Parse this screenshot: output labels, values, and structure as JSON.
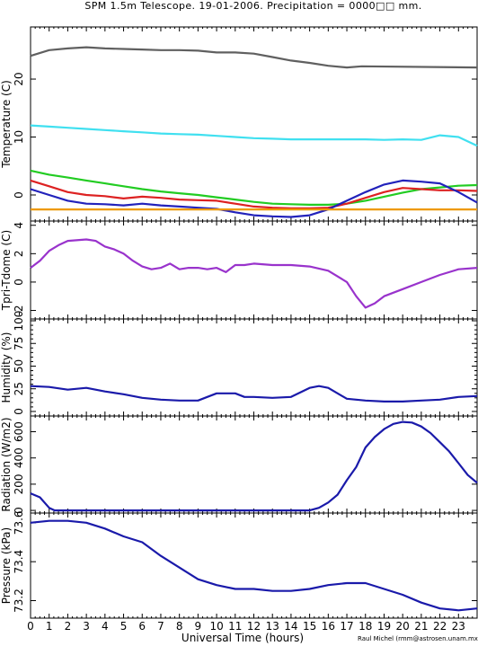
{
  "header": {
    "title": "SPM 1.5m Telescope. 19-01-2006. Precipitation = 0000□□ mm."
  },
  "footer": {
    "xlabel": "Universal Time (hours)",
    "credit": "Raul Michel (rmm@astrosen.unam.mx)"
  },
  "chart_data": [
    {
      "type": "line",
      "ylabel": "Temperature (C)",
      "xlim": [
        0,
        24
      ],
      "ylim": [
        -4.5,
        29
      ],
      "yticks": [
        0,
        10,
        20
      ],
      "x_ticks": [
        0,
        1,
        2,
        3,
        4,
        5,
        6,
        7,
        8,
        9,
        10,
        11,
        12,
        13,
        14,
        15,
        16,
        17,
        18,
        19,
        20,
        21,
        22,
        23
      ],
      "series": [
        {
          "color": "#606060",
          "points": [
            [
              0,
              24
            ],
            [
              1,
              25
            ],
            [
              2,
              25.3
            ],
            [
              3,
              25.5
            ],
            [
              4,
              25.3
            ],
            [
              5,
              25.2
            ],
            [
              6,
              25.1
            ],
            [
              7,
              25
            ],
            [
              8,
              25
            ],
            [
              9,
              24.9
            ],
            [
              10,
              24.6
            ],
            [
              11,
              24.6
            ],
            [
              12,
              24.4
            ],
            [
              13,
              23.8
            ],
            [
              14,
              23.2
            ],
            [
              15,
              22.8
            ],
            [
              16,
              22.3
            ],
            [
              17,
              22
            ],
            [
              17.8,
              22.2
            ],
            [
              24,
              22
            ]
          ]
        },
        {
          "color": "#40e0f0",
          "points": [
            [
              0,
              12
            ],
            [
              1,
              11.8
            ],
            [
              2,
              11.6
            ],
            [
              3,
              11.4
            ],
            [
              4,
              11.2
            ],
            [
              5,
              11
            ],
            [
              6,
              10.8
            ],
            [
              7,
              10.6
            ],
            [
              8,
              10.5
            ],
            [
              9,
              10.4
            ],
            [
              10,
              10.2
            ],
            [
              11,
              10
            ],
            [
              12,
              9.8
            ],
            [
              13,
              9.7
            ],
            [
              14,
              9.6
            ],
            [
              15,
              9.6
            ],
            [
              16,
              9.6
            ],
            [
              17,
              9.6
            ],
            [
              18,
              9.6
            ],
            [
              19,
              9.5
            ],
            [
              20,
              9.6
            ],
            [
              21,
              9.5
            ],
            [
              22,
              10.3
            ],
            [
              23,
              10
            ],
            [
              24,
              8.5
            ]
          ]
        },
        {
          "color": "#22cc22",
          "points": [
            [
              0,
              4.2
            ],
            [
              1,
              3.5
            ],
            [
              2,
              3
            ],
            [
              3,
              2.5
            ],
            [
              4,
              2
            ],
            [
              5,
              1.5
            ],
            [
              6,
              1
            ],
            [
              7,
              0.6
            ],
            [
              8,
              0.3
            ],
            [
              9,
              0
            ],
            [
              10,
              -0.4
            ],
            [
              11,
              -0.8
            ],
            [
              12,
              -1.2
            ],
            [
              13,
              -1.5
            ],
            [
              14,
              -1.6
            ],
            [
              15,
              -1.7
            ],
            [
              16,
              -1.7
            ],
            [
              17,
              -1.5
            ],
            [
              18,
              -1
            ],
            [
              19,
              -0.3
            ],
            [
              20,
              0.4
            ],
            [
              21,
              1
            ],
            [
              22,
              1.3
            ],
            [
              23,
              1.6
            ],
            [
              24,
              1.7
            ]
          ]
        },
        {
          "color": "#dd2222",
          "points": [
            [
              0,
              2.5
            ],
            [
              1,
              1.5
            ],
            [
              2,
              0.5
            ],
            [
              3,
              0
            ],
            [
              4,
              -0.2
            ],
            [
              5,
              -0.6
            ],
            [
              6,
              -0.3
            ],
            [
              7,
              -0.5
            ],
            [
              8,
              -0.8
            ],
            [
              9,
              -0.9
            ],
            [
              10,
              -1
            ],
            [
              11,
              -1.5
            ],
            [
              12,
              -2
            ],
            [
              13,
              -2.2
            ],
            [
              14,
              -2.3
            ],
            [
              15,
              -2.3
            ],
            [
              16,
              -2.2
            ],
            [
              17,
              -1.5
            ],
            [
              18,
              -0.5
            ],
            [
              19,
              0.5
            ],
            [
              20,
              1.2
            ],
            [
              21,
              1
            ],
            [
              22,
              0.8
            ],
            [
              23,
              0.8
            ],
            [
              24,
              0.7
            ]
          ]
        },
        {
          "color": "#2222bb",
          "points": [
            [
              0,
              1
            ],
            [
              1,
              0
            ],
            [
              2,
              -1
            ],
            [
              3,
              -1.5
            ],
            [
              4,
              -1.6
            ],
            [
              5,
              -1.8
            ],
            [
              6,
              -1.5
            ],
            [
              7,
              -1.8
            ],
            [
              8,
              -2
            ],
            [
              9,
              -2.2
            ],
            [
              10,
              -2.4
            ],
            [
              11,
              -3
            ],
            [
              12,
              -3.5
            ],
            [
              13,
              -3.7
            ],
            [
              14,
              -3.8
            ],
            [
              15,
              -3.5
            ],
            [
              16,
              -2.5
            ],
            [
              17,
              -1
            ],
            [
              18,
              0.5
            ],
            [
              19,
              1.8
            ],
            [
              20,
              2.5
            ],
            [
              21,
              2.3
            ],
            [
              22,
              2
            ],
            [
              23,
              0.5
            ],
            [
              24,
              -1.3
            ]
          ]
        },
        {
          "color": "#ee9900",
          "points": [
            [
              0,
              -2.5
            ],
            [
              24,
              -2.5
            ]
          ]
        }
      ]
    },
    {
      "type": "line",
      "ylabel": "Tpri-Tdome (C)",
      "xlim": [
        0,
        24
      ],
      "ylim": [
        -2.6,
        4.3
      ],
      "yticks": [
        -2,
        0,
        2,
        4
      ],
      "x_ticks": [
        0,
        1,
        2,
        3,
        4,
        5,
        6,
        7,
        8,
        9,
        10,
        11,
        12,
        13,
        14,
        15,
        16,
        17,
        18,
        19,
        20,
        21,
        22,
        23
      ],
      "series": [
        {
          "color": "#9933cc",
          "points": [
            [
              0,
              1
            ],
            [
              0.5,
              1.5
            ],
            [
              1,
              2.2
            ],
            [
              1.5,
              2.6
            ],
            [
              2,
              2.9
            ],
            [
              3,
              3
            ],
            [
              3.5,
              2.9
            ],
            [
              4,
              2.5
            ],
            [
              4.5,
              2.3
            ],
            [
              5,
              2
            ],
            [
              5.5,
              1.5
            ],
            [
              6,
              1.1
            ],
            [
              6.5,
              0.9
            ],
            [
              7,
              1
            ],
            [
              7.5,
              1.3
            ],
            [
              8,
              0.9
            ],
            [
              8.5,
              1
            ],
            [
              9,
              1
            ],
            [
              9.5,
              0.9
            ],
            [
              10,
              1
            ],
            [
              10.5,
              0.7
            ],
            [
              11,
              1.2
            ],
            [
              11.5,
              1.2
            ],
            [
              12,
              1.3
            ],
            [
              13,
              1.2
            ],
            [
              14,
              1.2
            ],
            [
              15,
              1.1
            ],
            [
              16,
              0.8
            ],
            [
              17,
              0
            ],
            [
              17.5,
              -1
            ],
            [
              18,
              -1.8
            ],
            [
              18.5,
              -1.5
            ],
            [
              19,
              -1
            ],
            [
              20,
              -0.5
            ],
            [
              21,
              0
            ],
            [
              22,
              0.5
            ],
            [
              23,
              0.9
            ],
            [
              24,
              1
            ]
          ]
        }
      ]
    },
    {
      "type": "line",
      "ylabel": "Humidity (%)",
      "xlim": [
        0,
        24
      ],
      "ylim": [
        -5,
        102
      ],
      "yticks": [
        0,
        25,
        50,
        75,
        100
      ],
      "minor_yticks": [
        5,
        10,
        15,
        20,
        30,
        35,
        40,
        45,
        55,
        60,
        65,
        70,
        80,
        85,
        90,
        95
      ],
      "x_ticks": [
        0,
        1,
        2,
        3,
        4,
        5,
        6,
        7,
        8,
        9,
        10,
        11,
        12,
        13,
        14,
        15,
        16,
        17,
        18,
        19,
        20,
        21,
        22,
        23
      ],
      "series": [
        {
          "color": "#1a1aaa",
          "points": [
            [
              0,
              28
            ],
            [
              1,
              27
            ],
            [
              2,
              24
            ],
            [
              3,
              26
            ],
            [
              4,
              22
            ],
            [
              5,
              19
            ],
            [
              6,
              15
            ],
            [
              7,
              13
            ],
            [
              8,
              12
            ],
            [
              9,
              12
            ],
            [
              9.5,
              16
            ],
            [
              10,
              20
            ],
            [
              11,
              20
            ],
            [
              11.5,
              16
            ],
            [
              12,
              16
            ],
            [
              13,
              15
            ],
            [
              14,
              16
            ],
            [
              15,
              26
            ],
            [
              15.5,
              28
            ],
            [
              16,
              26
            ],
            [
              16.5,
              20
            ],
            [
              17,
              14
            ],
            [
              18,
              12
            ],
            [
              19,
              11
            ],
            [
              20,
              11
            ],
            [
              21,
              12
            ],
            [
              22,
              13
            ],
            [
              23,
              16
            ],
            [
              24,
              17
            ]
          ]
        }
      ]
    },
    {
      "type": "line",
      "ylabel": "Radiation (W/m2)",
      "xlim": [
        0,
        24
      ],
      "ylim": [
        -20,
        720
      ],
      "yticks": [
        0,
        200,
        400,
        600
      ],
      "x_ticks": [
        0,
        1,
        2,
        3,
        4,
        5,
        6,
        7,
        8,
        9,
        10,
        11,
        12,
        13,
        14,
        15,
        16,
        17,
        18,
        19,
        20,
        21,
        22,
        23
      ],
      "series": [
        {
          "color": "#1a1aaa",
          "points": [
            [
              0,
              130
            ],
            [
              0.5,
              100
            ],
            [
              1,
              20
            ],
            [
              1.3,
              0
            ],
            [
              15,
              0
            ],
            [
              15.5,
              20
            ],
            [
              16,
              60
            ],
            [
              16.5,
              120
            ],
            [
              17,
              230
            ],
            [
              17.5,
              330
            ],
            [
              18,
              480
            ],
            [
              18.5,
              560
            ],
            [
              19,
              620
            ],
            [
              19.5,
              660
            ],
            [
              20,
              675
            ],
            [
              20.5,
              670
            ],
            [
              21,
              640
            ],
            [
              21.5,
              590
            ],
            [
              22,
              520
            ],
            [
              22.5,
              450
            ],
            [
              23,
              360
            ],
            [
              23.5,
              270
            ],
            [
              24,
              210
            ]
          ]
        }
      ]
    },
    {
      "type": "line",
      "ylabel": "Pressure (kPa)",
      "xlim": [
        0,
        24
      ],
      "ylim": [
        73.11,
        73.65
      ],
      "yticks": [
        73.2,
        73.4,
        73.6
      ],
      "yticklabels": [
        "73.2",
        "73.4",
        "73.6"
      ],
      "x_ticks": [
        0,
        1,
        2,
        3,
        4,
        5,
        6,
        7,
        8,
        9,
        10,
        11,
        12,
        13,
        14,
        15,
        16,
        17,
        18,
        19,
        20,
        21,
        22,
        23
      ],
      "series": [
        {
          "color": "#1a1aaa",
          "points": [
            [
              0,
              73.6
            ],
            [
              1,
              73.61
            ],
            [
              2,
              73.61
            ],
            [
              3,
              73.6
            ],
            [
              4,
              73.57
            ],
            [
              5,
              73.53
            ],
            [
              6,
              73.5
            ],
            [
              7,
              73.43
            ],
            [
              8,
              73.37
            ],
            [
              9,
              73.31
            ],
            [
              10,
              73.28
            ],
            [
              11,
              73.26
            ],
            [
              12,
              73.26
            ],
            [
              13,
              73.25
            ],
            [
              14,
              73.25
            ],
            [
              15,
              73.26
            ],
            [
              16,
              73.28
            ],
            [
              17,
              73.29
            ],
            [
              18,
              73.29
            ],
            [
              19,
              73.26
            ],
            [
              20,
              73.23
            ],
            [
              21,
              73.19
            ],
            [
              22,
              73.16
            ],
            [
              23,
              73.15
            ],
            [
              24,
              73.16
            ]
          ]
        }
      ]
    }
  ]
}
